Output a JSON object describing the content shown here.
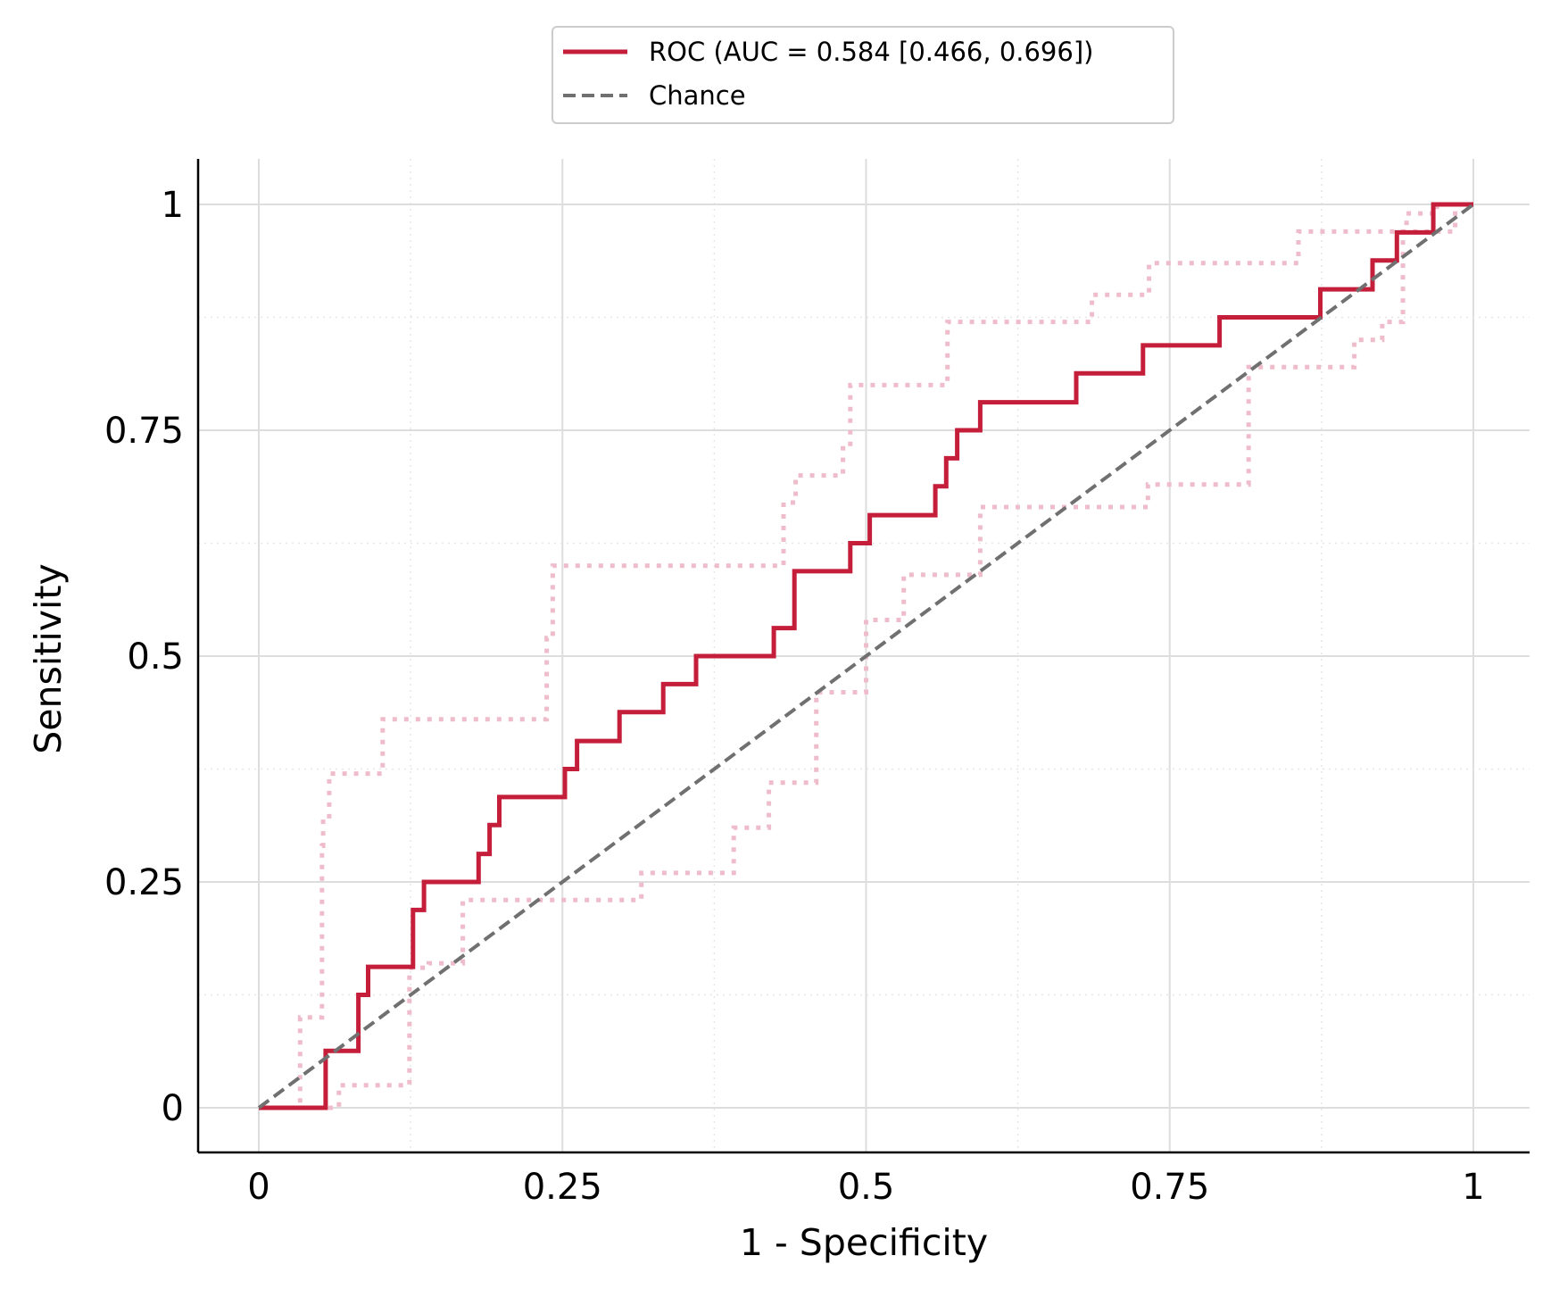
{
  "chart_data": {
    "type": "line",
    "title": "",
    "xlabel": "1 - Specificity",
    "ylabel": "Sensitivity",
    "xlim": [
      -0.05,
      1.05
    ],
    "ylim": [
      -0.05,
      1.05
    ],
    "grid": true,
    "legend_position": "top-center",
    "x_ticks": [
      0,
      0.25,
      0.5,
      0.75,
      1
    ],
    "x_tick_labels": [
      "0",
      "0.25",
      "0.5",
      "0.75",
      "1"
    ],
    "y_ticks": [
      0,
      0.25,
      0.5,
      0.75,
      1
    ],
    "y_tick_labels": [
      "0",
      "0.25",
      "0.5",
      "0.75",
      "1"
    ],
    "legend": [
      {
        "label": "ROC (AUC = 0.584 [0.466, 0.696])",
        "style": "solid",
        "color": "#c41e3a"
      },
      {
        "label": "Chance",
        "style": "dashed",
        "color": "#707070"
      }
    ],
    "series": [
      {
        "name": "ROC (AUC = 0.584 [0.466, 0.696])",
        "style": "step-solid",
        "color": "#c41e3a",
        "x": [
          0,
          0.055,
          0.055,
          0.082,
          0.082,
          0.09,
          0.09,
          0.127,
          0.127,
          0.136,
          0.136,
          0.181,
          0.181,
          0.19,
          0.19,
          0.198,
          0.198,
          0.252,
          0.252,
          0.262,
          0.262,
          0.297,
          0.297,
          0.333,
          0.333,
          0.36,
          0.36,
          0.424,
          0.424,
          0.441,
          0.441,
          0.487,
          0.487,
          0.503,
          0.503,
          0.557,
          0.557,
          0.566,
          0.566,
          0.575,
          0.575,
          0.594,
          0.594,
          0.673,
          0.673,
          0.728,
          0.728,
          0.791,
          0.791,
          0.874,
          0.874,
          0.917,
          0.917,
          0.937,
          0.937,
          0.967,
          0.967,
          1.0
        ],
        "y": [
          0,
          0,
          0.063,
          0.063,
          0.125,
          0.125,
          0.156,
          0.156,
          0.219,
          0.219,
          0.25,
          0.25,
          0.281,
          0.281,
          0.313,
          0.313,
          0.344,
          0.344,
          0.375,
          0.375,
          0.406,
          0.406,
          0.438,
          0.438,
          0.469,
          0.469,
          0.5,
          0.5,
          0.531,
          0.531,
          0.594,
          0.594,
          0.625,
          0.625,
          0.656,
          0.656,
          0.688,
          0.688,
          0.719,
          0.719,
          0.75,
          0.75,
          0.781,
          0.781,
          0.813,
          0.813,
          0.844,
          0.844,
          0.875,
          0.875,
          0.906,
          0.906,
          0.938,
          0.938,
          0.969,
          0.969,
          1.0,
          1.0
        ]
      },
      {
        "name": "Chance",
        "style": "dashed",
        "color": "#707070",
        "x": [
          0,
          1
        ],
        "y": [
          0,
          1
        ]
      }
    ],
    "confidence_bounds": [
      {
        "style": "dotted",
        "color": "#efbccb",
        "x": [
          0,
          0.034,
          0.034,
          0.052,
          0.052,
          0.053,
          0.053,
          0.058,
          0.058,
          0.102,
          0.102,
          0.237,
          0.237,
          0.242,
          0.242,
          0.432,
          0.432,
          0.442,
          0.442,
          0.481,
          0.481,
          0.487,
          0.487,
          0.567,
          0.567,
          0.673,
          0.673,
          0.686,
          0.686,
          0.733,
          0.733,
          0.856,
          0.856,
          0.945,
          0.945,
          0.97,
          0.97,
          1.0
        ],
        "y": [
          0,
          0,
          0.1,
          0.1,
          0.29,
          0.29,
          0.32,
          0.32,
          0.37,
          0.37,
          0.43,
          0.43,
          0.52,
          0.52,
          0.6,
          0.6,
          0.67,
          0.67,
          0.7,
          0.7,
          0.73,
          0.73,
          0.8,
          0.8,
          0.87,
          0.87,
          0.87,
          0.87,
          0.9,
          0.9,
          0.935,
          0.935,
          0.97,
          0.97,
          0.99,
          0.99,
          1.0,
          1.0
        ]
      },
      {
        "style": "dotted",
        "color": "#efbccb",
        "x": [
          0,
          0.066,
          0.066,
          0.124,
          0.124,
          0.14,
          0.14,
          0.168,
          0.168,
          0.193,
          0.193,
          0.315,
          0.315,
          0.391,
          0.391,
          0.42,
          0.42,
          0.459,
          0.459,
          0.5,
          0.5,
          0.531,
          0.531,
          0.594,
          0.594,
          0.732,
          0.732,
          0.815,
          0.815,
          0.902,
          0.902,
          0.925,
          0.925,
          0.942,
          0.942,
          0.985,
          0.985,
          1.0
        ],
        "y": [
          0,
          0,
          0.025,
          0.025,
          0.155,
          0.155,
          0.16,
          0.16,
          0.23,
          0.23,
          0.23,
          0.23,
          0.26,
          0.26,
          0.31,
          0.31,
          0.36,
          0.36,
          0.46,
          0.46,
          0.54,
          0.54,
          0.59,
          0.59,
          0.665,
          0.665,
          0.69,
          0.69,
          0.82,
          0.82,
          0.85,
          0.85,
          0.87,
          0.87,
          0.97,
          0.97,
          1.0,
          1.0
        ]
      }
    ]
  }
}
